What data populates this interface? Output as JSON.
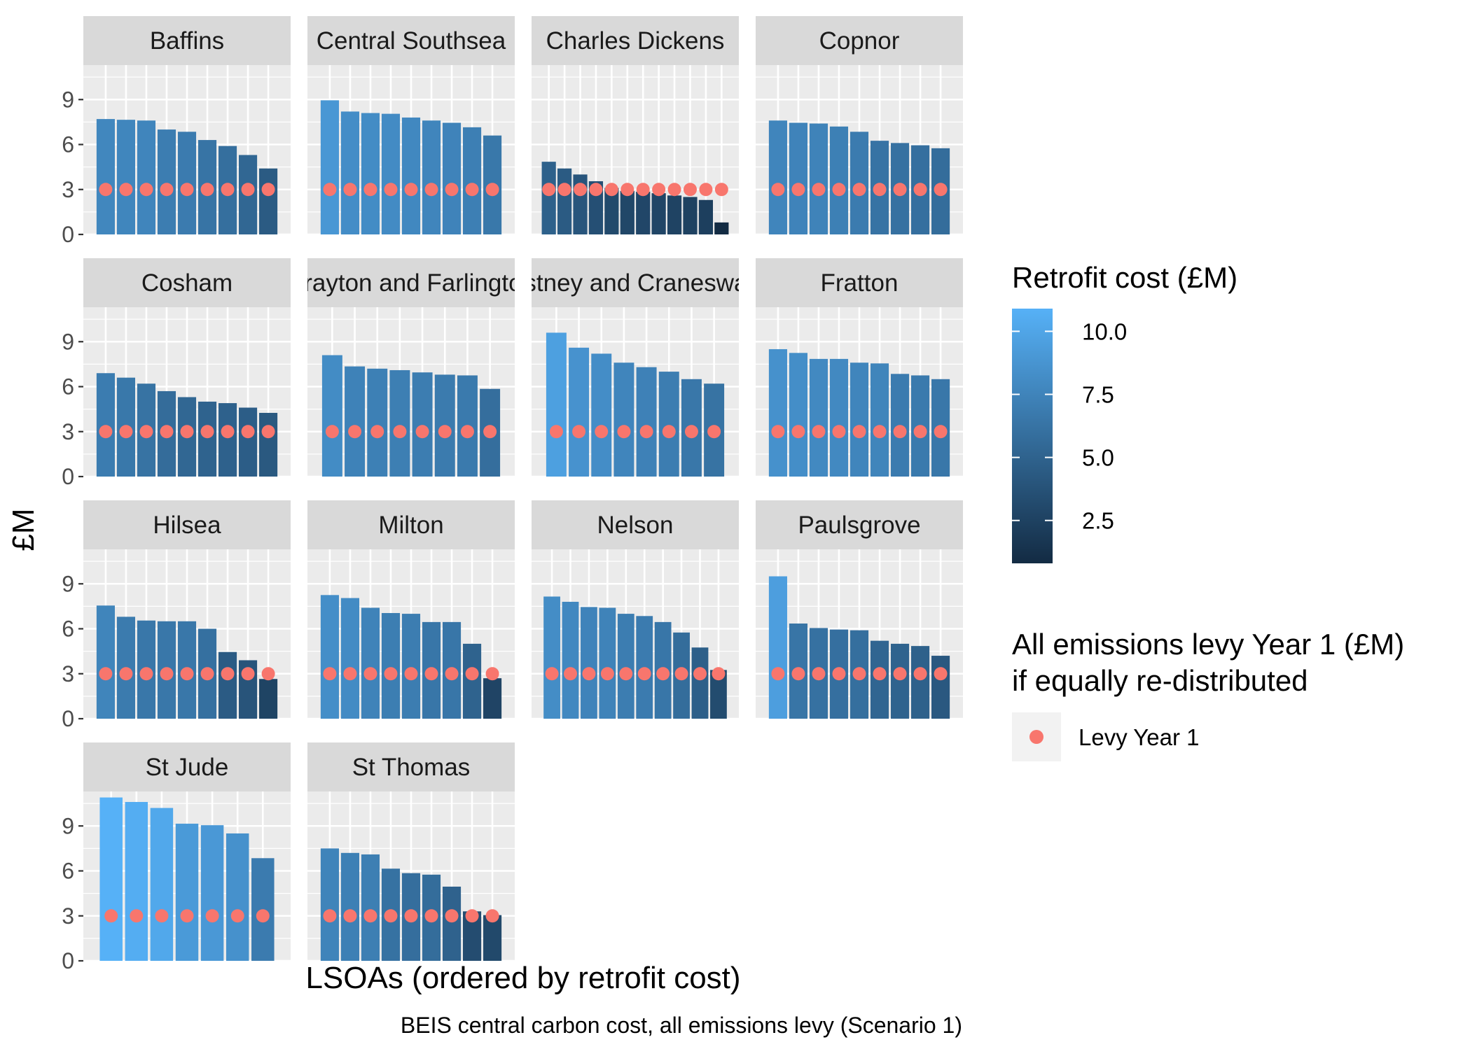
{
  "chart_data": {
    "type": "bar",
    "facet_layout": "wrap",
    "ylabel": "£M",
    "xlabel": "LSOAs (ordered by retrofit cost)",
    "caption": "BEIS central carbon cost, all emissions levy (Scenario 1)",
    "y_ticks": [
      0,
      3,
      6,
      9
    ],
    "ylim": [
      0,
      11.3
    ],
    "fill_scale": {
      "title": "Retrofit cost (£M)",
      "breaks": [
        "10.0",
        "7.5",
        "5.0",
        "2.5"
      ],
      "break_values": [
        10.0,
        7.5,
        5.0,
        2.5
      ],
      "low_color": "#132B43",
      "high_color": "#56B1F7",
      "min": 0.8,
      "max": 10.9
    },
    "point_legend": {
      "title_line1": "All emissions levy Year 1 (£M)",
      "title_line2": "if equally re-distributed",
      "label": "Levy Year 1",
      "color": "#F8766D"
    },
    "levy_value": 3.0,
    "panels": [
      {
        "name": "Baffins",
        "values": [
          7.7,
          7.65,
          7.6,
          7.0,
          6.85,
          6.3,
          5.9,
          5.3,
          4.4
        ]
      },
      {
        "name": "Central Southsea",
        "values": [
          8.95,
          8.2,
          8.1,
          8.05,
          7.8,
          7.6,
          7.45,
          7.15,
          6.6
        ]
      },
      {
        "name": "Charles Dickens",
        "values": [
          4.85,
          4.4,
          4.0,
          3.55,
          3.1,
          2.9,
          2.85,
          2.75,
          2.6,
          2.5,
          2.3,
          0.8
        ]
      },
      {
        "name": "Copnor",
        "values": [
          7.6,
          7.45,
          7.4,
          7.2,
          6.85,
          6.25,
          6.1,
          5.95,
          5.75
        ]
      },
      {
        "name": "Cosham",
        "values": [
          6.9,
          6.6,
          6.2,
          5.7,
          5.3,
          5.0,
          4.9,
          4.6,
          4.25
        ]
      },
      {
        "name": "Drayton and Farlington",
        "values": [
          8.1,
          7.35,
          7.2,
          7.1,
          6.95,
          6.8,
          6.75,
          5.85
        ]
      },
      {
        "name": "Eastney and Craneswater",
        "values": [
          9.6,
          8.6,
          8.2,
          7.6,
          7.3,
          7.0,
          6.5,
          6.2
        ]
      },
      {
        "name": "Fratton",
        "values": [
          8.5,
          8.25,
          7.85,
          7.85,
          7.6,
          7.55,
          6.85,
          6.75,
          6.5
        ]
      },
      {
        "name": "Hilsea",
        "values": [
          7.55,
          6.8,
          6.55,
          6.5,
          6.5,
          6.0,
          4.45,
          3.9,
          2.65
        ]
      },
      {
        "name": "Milton",
        "values": [
          8.25,
          8.05,
          7.4,
          7.05,
          7.0,
          6.45,
          6.45,
          5.0,
          2.7
        ]
      },
      {
        "name": "Nelson",
        "values": [
          8.15,
          7.8,
          7.45,
          7.4,
          7.0,
          6.85,
          6.45,
          5.75,
          4.75,
          3.25
        ]
      },
      {
        "name": "Paulsgrove",
        "values": [
          9.5,
          6.35,
          6.05,
          5.95,
          5.9,
          5.2,
          5.0,
          4.85,
          4.2
        ]
      },
      {
        "name": "St Jude",
        "values": [
          10.9,
          10.6,
          10.2,
          9.15,
          9.05,
          8.5,
          6.85
        ]
      },
      {
        "name": "St Thomas",
        "values": [
          7.5,
          7.2,
          7.1,
          6.15,
          5.85,
          5.75,
          4.95,
          3.3,
          3.05
        ]
      }
    ]
  }
}
